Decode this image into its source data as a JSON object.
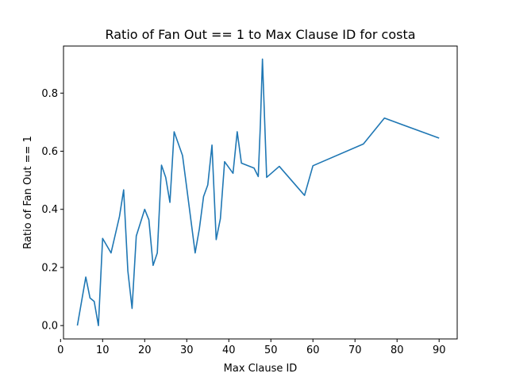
{
  "chart_data": {
    "type": "line",
    "title": "Ratio of Fan Out == 1 to Max Clause ID for costa",
    "xlabel": "Max Clause ID",
    "ylabel": "Ratio of Fan Out == 1",
    "xlim": [
      0.7,
      94.3
    ],
    "ylim": [
      -0.046,
      0.962
    ],
    "xticks": [
      0,
      10,
      20,
      30,
      40,
      50,
      60,
      70,
      80,
      90
    ],
    "yticks": [
      0.0,
      0.2,
      0.4,
      0.6,
      0.8
    ],
    "ytick_labels": [
      "0.0",
      "0.2",
      "0.4",
      "0.6",
      "0.8"
    ],
    "grid": false,
    "series": [
      {
        "color": "#1f77b4",
        "points": [
          [
            4,
            0.0
          ],
          [
            6,
            0.167
          ],
          [
            7,
            0.095
          ],
          [
            8,
            0.083
          ],
          [
            9,
            0.0
          ],
          [
            10,
            0.3
          ],
          [
            12,
            0.25
          ],
          [
            14,
            0.375
          ],
          [
            15,
            0.467
          ],
          [
            16,
            0.188
          ],
          [
            17,
            0.059
          ],
          [
            18,
            0.308
          ],
          [
            20,
            0.4
          ],
          [
            21,
            0.364
          ],
          [
            22,
            0.207
          ],
          [
            23,
            0.25
          ],
          [
            24,
            0.552
          ],
          [
            25,
            0.51
          ],
          [
            26,
            0.424
          ],
          [
            27,
            0.667
          ],
          [
            29,
            0.585
          ],
          [
            30,
            0.474
          ],
          [
            32,
            0.25
          ],
          [
            33,
            0.333
          ],
          [
            34,
            0.444
          ],
          [
            35,
            0.484
          ],
          [
            36,
            0.621
          ],
          [
            37,
            0.296
          ],
          [
            38,
            0.368
          ],
          [
            39,
            0.564
          ],
          [
            41,
            0.524
          ],
          [
            42,
            0.667
          ],
          [
            43,
            0.559
          ],
          [
            46,
            0.542
          ],
          [
            47,
            0.513
          ],
          [
            47.5,
            0.69
          ],
          [
            48,
            0.917
          ],
          [
            49,
            0.51
          ],
          [
            52,
            0.548
          ],
          [
            58,
            0.448
          ],
          [
            60,
            0.55
          ],
          [
            72,
            0.625
          ],
          [
            77,
            0.714
          ],
          [
            90,
            0.645
          ]
        ]
      }
    ]
  }
}
